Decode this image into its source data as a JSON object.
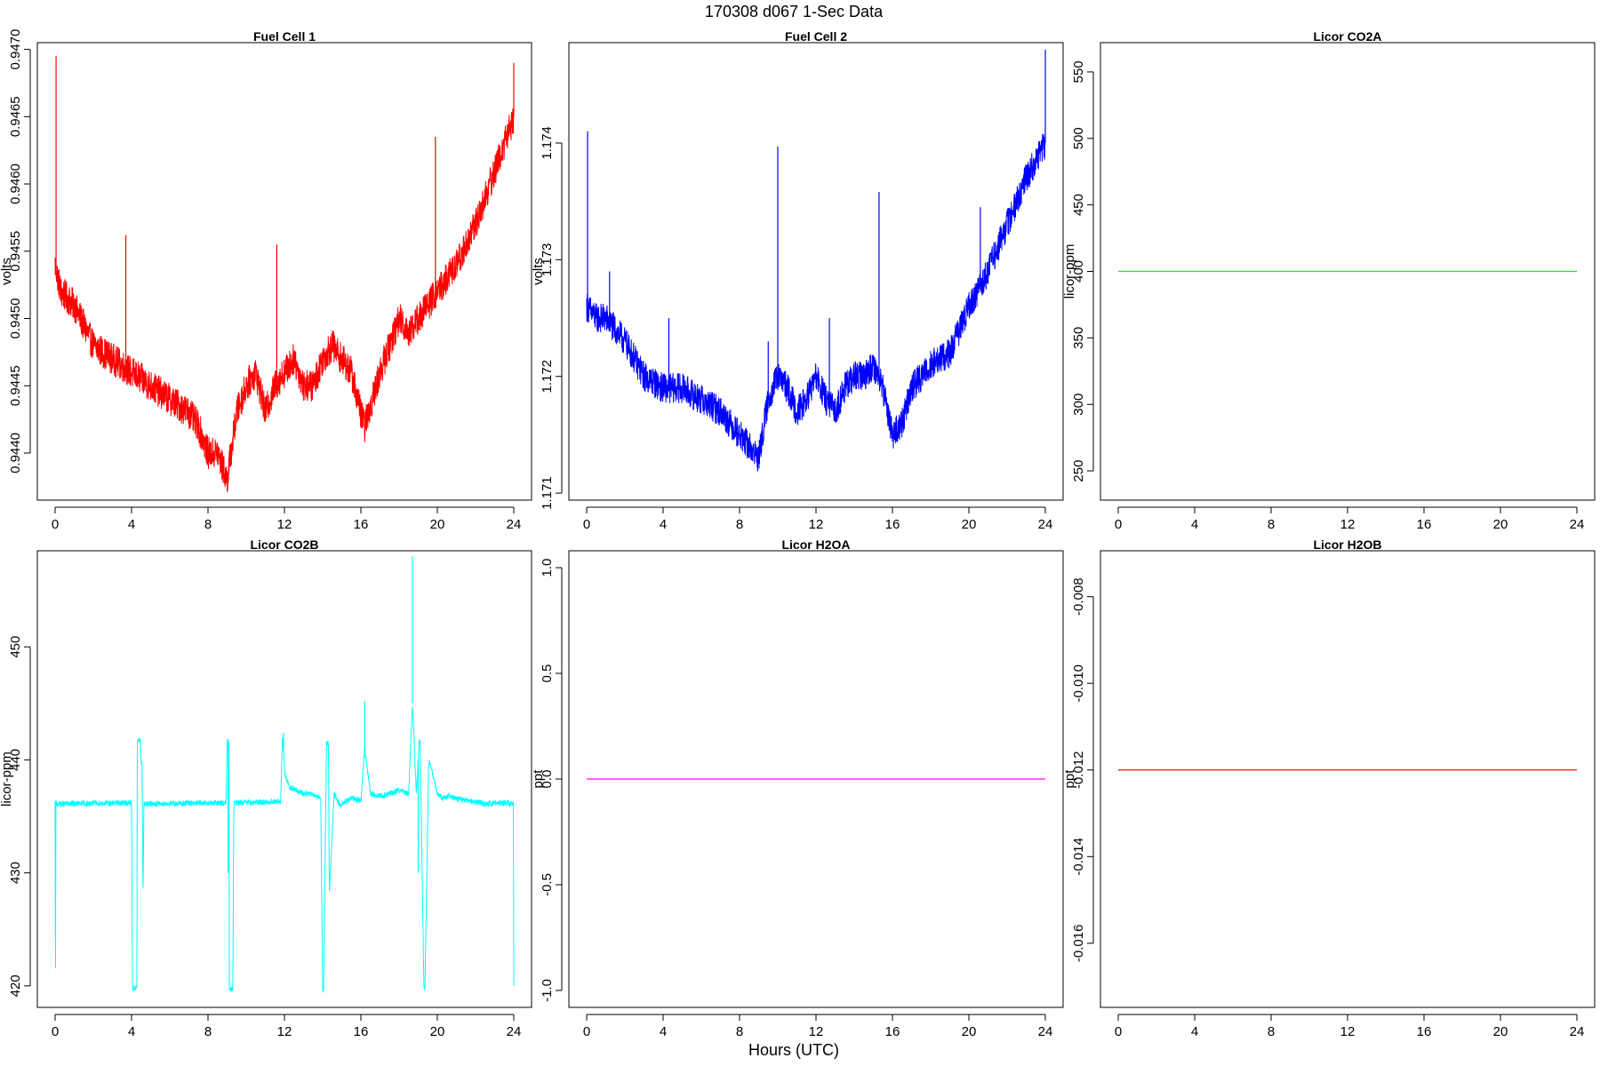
{
  "figure": {
    "title": "170308   d067   1-Sec Data",
    "xlabel": "Hours (UTC)"
  },
  "chart_data": [
    {
      "type": "line",
      "title": "Fuel Cell 1",
      "ylabel": "volts",
      "color": "#ff0000",
      "xlim": [
        0,
        24
      ],
      "ylim": [
        0.94365,
        0.94705
      ],
      "xticks": [
        0,
        4,
        8,
        12,
        16,
        20,
        24
      ],
      "yticks": [
        0.944,
        0.9445,
        0.945,
        0.9455,
        0.946,
        0.9465,
        0.947
      ],
      "ytick_labels": [
        "0.9440",
        "0.9445",
        "0.9450",
        "0.9455",
        "0.9460",
        "0.9465",
        "0.9470"
      ],
      "noise": 0.00012,
      "x": [
        0,
        0.3,
        1,
        2,
        3,
        4,
        5,
        6,
        7,
        7.5,
        8,
        8.5,
        9,
        9.5,
        10,
        10.5,
        11,
        11.5,
        12,
        12.5,
        13,
        13.5,
        14,
        14.5,
        15,
        15.5,
        16,
        16.2,
        17,
        18,
        18.5,
        19,
        20,
        20.5,
        21,
        22,
        23,
        24
      ],
      "y": [
        0.9454,
        0.9452,
        0.9451,
        0.9448,
        0.9447,
        0.9446,
        0.9445,
        0.9444,
        0.9443,
        0.9442,
        0.944,
        0.944,
        0.9438,
        0.9443,
        0.9445,
        0.9446,
        0.9443,
        0.9445,
        0.9446,
        0.9447,
        0.9445,
        0.9445,
        0.9447,
        0.9448,
        0.9447,
        0.9446,
        0.9443,
        0.9442,
        0.9446,
        0.945,
        0.9449,
        0.945,
        0.9452,
        0.9453,
        0.9454,
        0.9457,
        0.9461,
        0.9465
      ],
      "spikes": [
        [
          0.05,
          0.94695
        ],
        [
          3.7,
          0.94562
        ],
        [
          11.6,
          0.94555
        ],
        [
          19.9,
          0.94635
        ],
        [
          24,
          0.9469
        ]
      ]
    },
    {
      "type": "line",
      "title": "Fuel Cell 2",
      "ylabel": "volts",
      "color": "#0000ff",
      "xlim": [
        0,
        24
      ],
      "ylim": [
        1.17094,
        1.17486
      ],
      "xticks": [
        0,
        4,
        8,
        12,
        16,
        20,
        24
      ],
      "yticks": [
        1.171,
        1.172,
        1.173,
        1.174
      ],
      "ytick_labels": [
        "1.171",
        "1.172",
        "1.173",
        "1.174"
      ],
      "noise": 0.00013,
      "x": [
        0,
        0.5,
        1,
        2,
        3,
        4,
        5,
        6,
        7,
        8,
        8.5,
        9,
        9.5,
        10,
        10.5,
        11,
        11.5,
        12,
        12.5,
        13,
        13.5,
        14,
        14.5,
        15,
        15.5,
        16,
        16.5,
        17,
        18,
        19,
        20,
        21,
        22,
        23,
        24
      ],
      "y": [
        1.1726,
        1.1725,
        1.1725,
        1.1723,
        1.172,
        1.1719,
        1.1719,
        1.1718,
        1.1717,
        1.1715,
        1.1714,
        1.1713,
        1.1718,
        1.172,
        1.1719,
        1.1717,
        1.1718,
        1.172,
        1.1718,
        1.1717,
        1.1719,
        1.172,
        1.172,
        1.1721,
        1.1719,
        1.1715,
        1.1716,
        1.1719,
        1.1721,
        1.1722,
        1.1726,
        1.1729,
        1.1733,
        1.1737,
        1.174
      ],
      "spikes": [
        [
          0.05,
          1.1741
        ],
        [
          1.2,
          1.1729
        ],
        [
          4.3,
          1.1725
        ],
        [
          9.5,
          1.1723
        ],
        [
          10,
          1.17397
        ],
        [
          12.7,
          1.1725
        ],
        [
          15.3,
          1.17358
        ],
        [
          20.6,
          1.17345
        ],
        [
          24,
          1.1748
        ]
      ]
    },
    {
      "type": "line",
      "title": "Licor CO2A",
      "ylabel": "licor-ppm",
      "color": "#00ff00",
      "xlim": [
        0,
        24
      ],
      "ylim": [
        228,
        572
      ],
      "xticks": [
        0,
        4,
        8,
        12,
        16,
        20,
        24
      ],
      "yticks": [
        250,
        300,
        350,
        400,
        450,
        500,
        550
      ],
      "ytick_labels": [
        "250",
        "300",
        "350",
        "400",
        "450",
        "500",
        "550"
      ],
      "noise": 0,
      "x": [
        0,
        24
      ],
      "y": [
        400,
        400
      ],
      "spikes": []
    },
    {
      "type": "line",
      "title": "Licor CO2B",
      "ylabel": "licor-ppm",
      "color": "#00ffff",
      "xlim": [
        0,
        24
      ],
      "ylim": [
        418.1,
        458.5
      ],
      "xticks": [
        0,
        4,
        8,
        12,
        16,
        20,
        24
      ],
      "yticks": [
        420,
        430,
        440,
        450
      ],
      "ytick_labels": [
        "420",
        "430",
        "440",
        "450"
      ],
      "noise": 0.25,
      "x": [
        0,
        0.02,
        0.04,
        0.08,
        4.0,
        4.05,
        4.1,
        4.28,
        4.3,
        4.45,
        4.5,
        4.55,
        4.6,
        4.65,
        8.9,
        8.95,
        9.0,
        9.1,
        9.12,
        9.3,
        9.35,
        11.8,
        11.9,
        12.05,
        12.3,
        12.6,
        13.0,
        13.5,
        13.9,
        14.0,
        14.05,
        14.2,
        14.3,
        14.35,
        14.6,
        14.9,
        15.1,
        15.5,
        16.0,
        16.2,
        16.5,
        17.0,
        17.5,
        18.0,
        18.5,
        18.7,
        18.9,
        19.05,
        19.1,
        19.3,
        19.35,
        19.55,
        19.6,
        20.0,
        20.3,
        20.6,
        21.0,
        21.5,
        22.0,
        22.5,
        23.0,
        23.5,
        23.98,
        24.0
      ],
      "y": [
        436.2,
        419.8,
        436.2,
        436.1,
        436.2,
        419.8,
        419.8,
        419.8,
        441.7,
        441.7,
        439.7,
        439.7,
        428.3,
        436.1,
        436.2,
        436.2,
        441.6,
        441.6,
        419.7,
        419.7,
        436.2,
        436.3,
        442.0,
        438.5,
        437.5,
        437.3,
        437.0,
        437.0,
        436.6,
        419.6,
        419.6,
        441.5,
        441.5,
        428.2,
        437.0,
        436.0,
        436.2,
        436.6,
        436.4,
        441.0,
        437.0,
        436.8,
        437.0,
        437.3,
        437.0,
        445.0,
        437.0,
        441.6,
        441.6,
        419.8,
        419.8,
        439.8,
        439.8,
        437.0,
        436.6,
        436.8,
        436.6,
        436.4,
        436.3,
        436.1,
        436.2,
        436.2,
        436.1,
        419.8
      ],
      "spikes": [
        [
          16.2,
          445.2
        ],
        [
          18.7,
          458.0
        ],
        [
          11.95,
          442.4
        ],
        [
          9.05,
          430.0
        ],
        [
          19.0,
          430.0
        ]
      ]
    },
    {
      "type": "line",
      "title": "Licor H2OA",
      "ylabel": "ppt",
      "color": "#ff00ff",
      "xlim": [
        0,
        24
      ],
      "ylim": [
        -1.08,
        1.08
      ],
      "xticks": [
        0,
        4,
        8,
        12,
        16,
        20,
        24
      ],
      "yticks": [
        -1.0,
        -0.5,
        0.0,
        0.5,
        1.0
      ],
      "ytick_labels": [
        "-1.0",
        "-0.5",
        "0.0",
        "0.5",
        "1.0"
      ],
      "noise": 0,
      "x": [
        0,
        24
      ],
      "y": [
        0,
        0
      ],
      "spikes": []
    },
    {
      "type": "line",
      "title": "Licor H2OB",
      "ylabel": "ppt",
      "color": "#ff0000",
      "xlim": [
        0,
        24
      ],
      "ylim": [
        -0.01748,
        -0.00694
      ],
      "xticks": [
        0,
        4,
        8,
        12,
        16,
        20,
        24
      ],
      "yticks": [
        -0.016,
        -0.014,
        -0.012,
        -0.01,
        -0.008
      ],
      "ytick_labels": [
        "-0.016",
        "-0.014",
        "-0.012",
        "-0.010",
        "-0.008"
      ],
      "noise": 0,
      "x": [
        0,
        24
      ],
      "y": [
        -0.012,
        -0.012
      ],
      "spikes": []
    }
  ]
}
